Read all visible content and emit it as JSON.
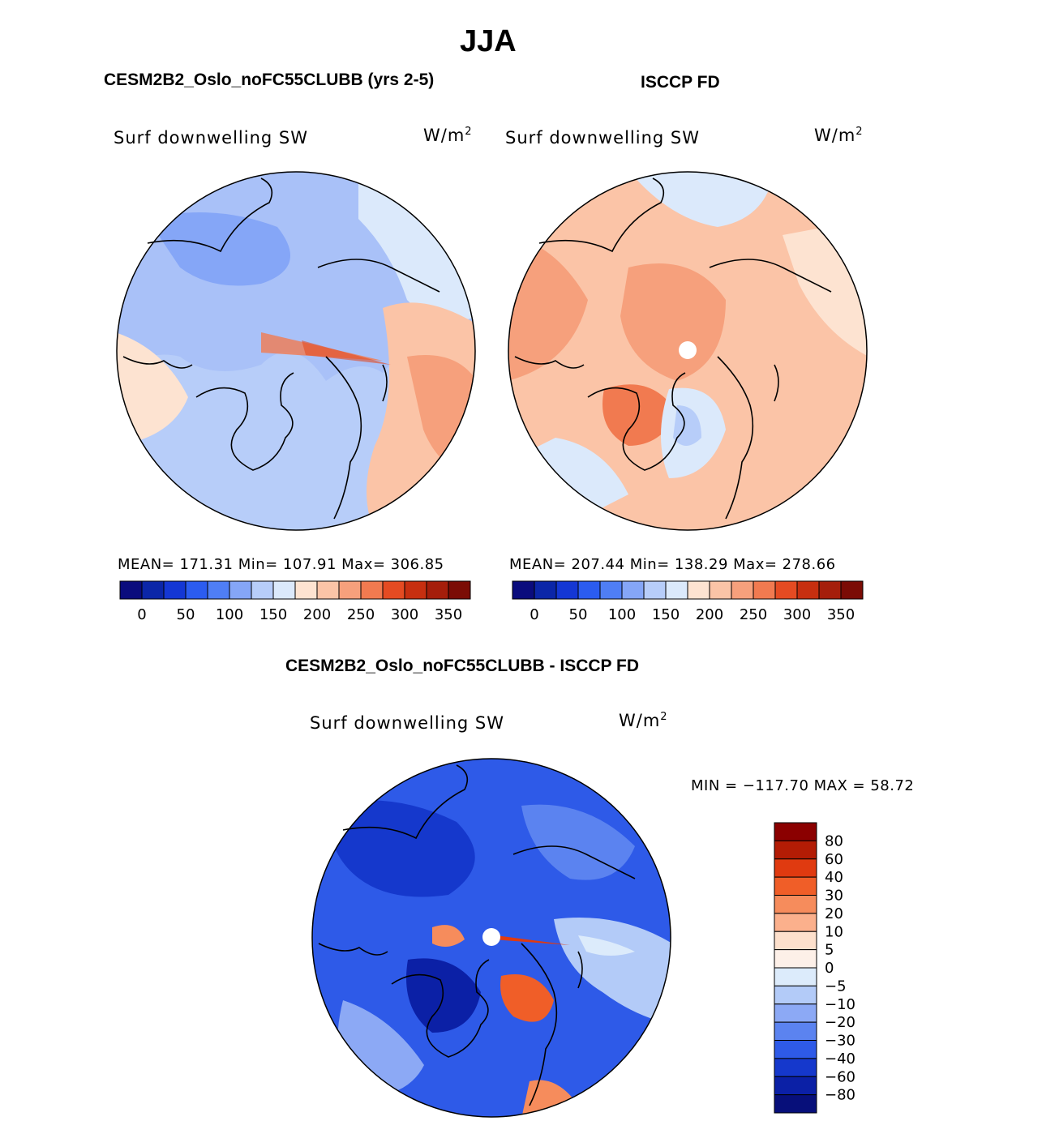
{
  "figure": {
    "title": "JJA"
  },
  "panels": [
    {
      "title": "CESM2B2_Oslo_noFC55CLUBB (yrs 2-5)",
      "variable": "Surf downwelling SW",
      "units_base": "W/m",
      "units_exp": "2",
      "stats": "MEAN= 171.31   Min= 107.91   Max= 306.85"
    },
    {
      "title": "ISCCP FD",
      "variable": "Surf downwelling SW",
      "units_base": "W/m",
      "units_exp": "2",
      "stats": "MEAN= 207.44   Min= 138.29   Max= 278.66"
    },
    {
      "title": "CESM2B2_Oslo_noFC55CLUBB - ISCCP FD",
      "variable": "Surf downwelling SW",
      "units_base": "W/m",
      "units_exp": "2",
      "stats": "MIN = −117.70 MAX =   58.72"
    }
  ],
  "chart_data": [
    {
      "type": "heatmap",
      "projection": "north polar stereographic",
      "title": "CESM2B2_Oslo_noFC55CLUBB (yrs 2-5)",
      "variable": "Surf downwelling SW",
      "units": "W/m2",
      "mean": 171.31,
      "min": 107.91,
      "max": 306.85,
      "colorbar": {
        "orientation": "horizontal",
        "tick_labels": [
          "0",
          "50",
          "100",
          "150",
          "200",
          "250",
          "300",
          "350"
        ],
        "levels": [
          0,
          25,
          50,
          75,
          100,
          125,
          150,
          175,
          200,
          225,
          250,
          275,
          300,
          325,
          350
        ],
        "colors": [
          "#0a0c7d",
          "#0b26a8",
          "#1437d4",
          "#2b5cf0",
          "#4f7ef5",
          "#85a6f7",
          "#b7cdf9",
          "#dbe9fb",
          "#fde3d1",
          "#fbc4a7",
          "#f6a07c",
          "#f17a50",
          "#e54b22",
          "#c72f10",
          "#a51e0b",
          "#7b0c05"
        ]
      }
    },
    {
      "type": "heatmap",
      "projection": "north polar stereographic",
      "title": "ISCCP FD",
      "variable": "Surf downwelling SW",
      "units": "W/m2",
      "mean": 207.44,
      "min": 138.29,
      "max": 278.66,
      "colorbar": {
        "orientation": "horizontal",
        "tick_labels": [
          "0",
          "50",
          "100",
          "150",
          "200",
          "250",
          "300",
          "350"
        ],
        "levels": [
          0,
          25,
          50,
          75,
          100,
          125,
          150,
          175,
          200,
          225,
          250,
          275,
          300,
          325,
          350
        ],
        "colors": [
          "#0a0c7d",
          "#0b26a8",
          "#1437d4",
          "#2b5cf0",
          "#4f7ef5",
          "#85a6f7",
          "#b7cdf9",
          "#dbe9fb",
          "#fde3d1",
          "#fbc4a7",
          "#f6a07c",
          "#f17a50",
          "#e54b22",
          "#c72f10",
          "#a51e0b",
          "#7b0c05"
        ]
      }
    },
    {
      "type": "heatmap",
      "projection": "north polar stereographic",
      "title": "CESM2B2_Oslo_noFC55CLUBB - ISCCP FD",
      "variable": "Surf downwelling SW",
      "units": "W/m2",
      "min": -117.7,
      "max": 58.72,
      "colorbar": {
        "orientation": "vertical",
        "tick_labels": [
          "80",
          "60",
          "40",
          "30",
          "20",
          "10",
          "5",
          "0",
          "−5",
          "−10",
          "−20",
          "−30",
          "−40",
          "−60",
          "−80"
        ],
        "colors_top_to_bottom": [
          "#8b0000",
          "#b31c05",
          "#e03a10",
          "#f05e28",
          "#f68c5c",
          "#fbb08c",
          "#fde0cc",
          "#fdf0e8",
          "#dcebfb",
          "#b3cbf8",
          "#8ca9f5",
          "#5b83f0",
          "#2e5ae8",
          "#1538cc",
          "#0b20a6",
          "#070f7a"
        ]
      }
    }
  ]
}
